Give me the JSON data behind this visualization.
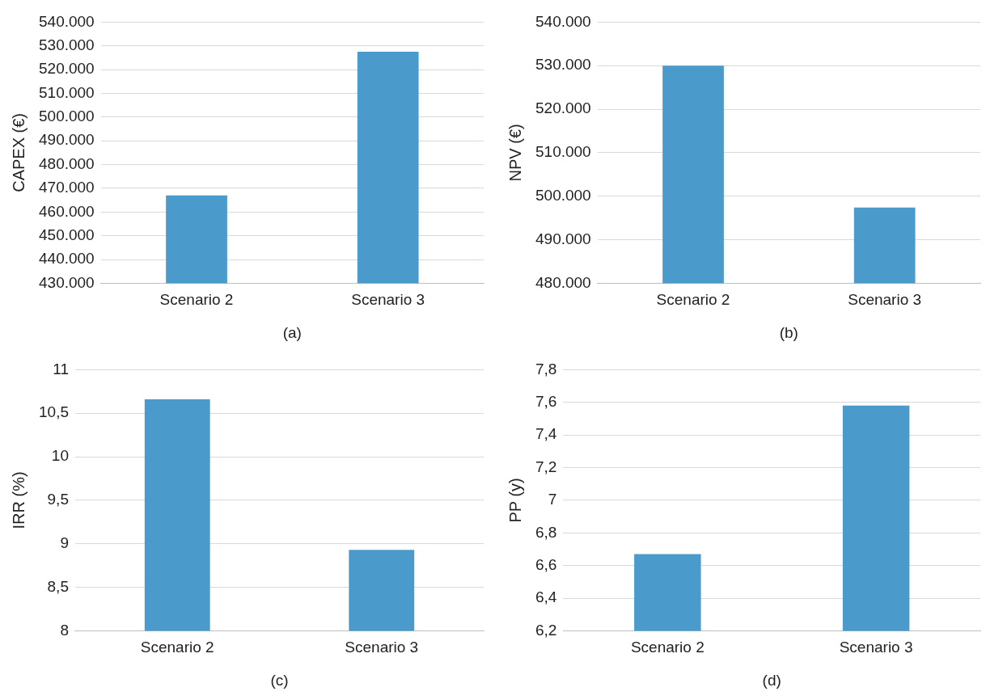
{
  "chart_data": [
    {
      "type": "bar",
      "xlabel": "(a)",
      "ylabel": "CAPEX (€)",
      "categories": [
        "Scenario 2",
        "Scenario 3"
      ],
      "values": [
        467000,
        527500
      ],
      "color": "#4a9bcb",
      "ylim": [
        430000,
        540000
      ],
      "yticks": [
        {
          "value": 430000,
          "label": "430.000"
        },
        {
          "value": 440000,
          "label": "440.000"
        },
        {
          "value": 450000,
          "label": "450.000"
        },
        {
          "value": 460000,
          "label": "460.000"
        },
        {
          "value": 470000,
          "label": "470.000"
        },
        {
          "value": 480000,
          "label": "480.000"
        },
        {
          "value": 490000,
          "label": "490.000"
        },
        {
          "value": 500000,
          "label": "500.000"
        },
        {
          "value": 510000,
          "label": "510.000"
        },
        {
          "value": 520000,
          "label": "520.000"
        },
        {
          "value": 530000,
          "label": "530.000"
        },
        {
          "value": 540000,
          "label": "540.000"
        }
      ],
      "grid": "y"
    },
    {
      "type": "bar",
      "xlabel": "(b)",
      "ylabel": "NPV (€)",
      "categories": [
        "Scenario 2",
        "Scenario 3"
      ],
      "values": [
        530000,
        497400
      ],
      "color": "#4a9bcb",
      "ylim": [
        480000,
        540000
      ],
      "yticks": [
        {
          "value": 480000,
          "label": "480.000"
        },
        {
          "value": 490000,
          "label": "490.000"
        },
        {
          "value": 500000,
          "label": "500.000"
        },
        {
          "value": 510000,
          "label": "510.000"
        },
        {
          "value": 520000,
          "label": "520.000"
        },
        {
          "value": 530000,
          "label": "530.000"
        },
        {
          "value": 540000,
          "label": "540.000"
        }
      ],
      "grid": "y"
    },
    {
      "type": "bar",
      "xlabel": "(c)",
      "ylabel": "IRR (%)",
      "categories": [
        "Scenario 2",
        "Scenario 3"
      ],
      "values": [
        10.66,
        8.93
      ],
      "color": "#4a9bcb",
      "ylim": [
        8,
        11
      ],
      "yticks": [
        8,
        {
          "value": 8.5,
          "label": "8,5"
        },
        9,
        {
          "value": 9.5,
          "label": "9,5"
        },
        10,
        {
          "value": 10.5,
          "label": "10,5"
        },
        11
      ],
      "grid": "y"
    },
    {
      "type": "bar",
      "xlabel": "(d)",
      "ylabel": "PP (y)",
      "categories": [
        "Scenario 2",
        "Scenario 3"
      ],
      "values": [
        6.67,
        7.58
      ],
      "color": "#4a9bcb",
      "ylim": [
        6.2,
        7.8
      ],
      "yticks": [
        {
          "value": 6.2,
          "label": "6,2"
        },
        {
          "value": 6.4,
          "label": "6,4"
        },
        {
          "value": 6.6,
          "label": "6,6"
        },
        {
          "value": 6.8,
          "label": "6,8"
        },
        7,
        {
          "value": 7.2,
          "label": "7,2"
        },
        {
          "value": 7.4,
          "label": "7,4"
        },
        {
          "value": 7.6,
          "label": "7,6"
        },
        {
          "value": 7.8,
          "label": "7,8"
        }
      ],
      "grid": "y"
    }
  ]
}
